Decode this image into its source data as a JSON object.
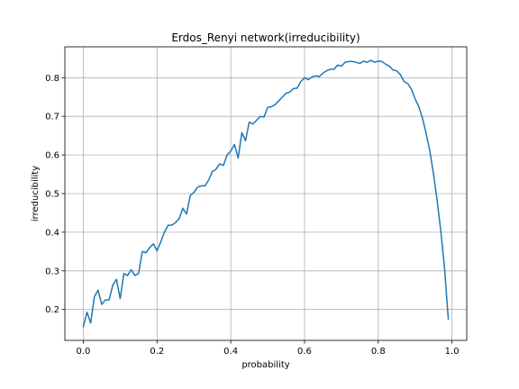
{
  "chart_data": {
    "type": "line",
    "title": "Erdos_Renyi network(irreducibility)",
    "xlabel": "probability",
    "ylabel": "irreducibility",
    "xlim": [
      -0.05,
      1.04
    ],
    "ylim": [
      0.12,
      0.88
    ],
    "xticks": [
      0.0,
      0.2,
      0.4,
      0.6,
      0.8,
      1.0
    ],
    "xtick_labels": [
      "0.0",
      "0.2",
      "0.4",
      "0.6",
      "0.8",
      "1.0"
    ],
    "yticks": [
      0.2,
      0.3,
      0.4,
      0.5,
      0.6,
      0.7,
      0.8
    ],
    "ytick_labels": [
      "0.2",
      "0.3",
      "0.4",
      "0.5",
      "0.6",
      "0.7",
      "0.8"
    ],
    "grid": true,
    "line_color": "#1f77b4",
    "series": [
      {
        "x": [
          0.0,
          0.01,
          0.02,
          0.03,
          0.04,
          0.05,
          0.06,
          0.07,
          0.08,
          0.09,
          0.1,
          0.11,
          0.12,
          0.13,
          0.14,
          0.15,
          0.16,
          0.17,
          0.18,
          0.19,
          0.2,
          0.21,
          0.22,
          0.23,
          0.24,
          0.25,
          0.26,
          0.27,
          0.28,
          0.29,
          0.3,
          0.31,
          0.32,
          0.33,
          0.34,
          0.35,
          0.36,
          0.37,
          0.38,
          0.39,
          0.4,
          0.41,
          0.42,
          0.43,
          0.44,
          0.45,
          0.46,
          0.47,
          0.48,
          0.49,
          0.5,
          0.51,
          0.52,
          0.53,
          0.54,
          0.55,
          0.56,
          0.57,
          0.58,
          0.59,
          0.6,
          0.61,
          0.62,
          0.63,
          0.64,
          0.65,
          0.66,
          0.67,
          0.68,
          0.69,
          0.7,
          0.71,
          0.72,
          0.73,
          0.74,
          0.75,
          0.76,
          0.77,
          0.78,
          0.79,
          0.8,
          0.81,
          0.82,
          0.83,
          0.84,
          0.85,
          0.86,
          0.87,
          0.88,
          0.89,
          0.9,
          0.91,
          0.92,
          0.93,
          0.94,
          0.95,
          0.96,
          0.97,
          0.98,
          0.99
        ],
        "y": [
          0.155,
          0.193,
          0.165,
          0.233,
          0.25,
          0.213,
          0.225,
          0.225,
          0.263,
          0.278,
          0.228,
          0.293,
          0.288,
          0.303,
          0.288,
          0.293,
          0.35,
          0.347,
          0.36,
          0.37,
          0.352,
          0.375,
          0.4,
          0.418,
          0.418,
          0.425,
          0.435,
          0.462,
          0.447,
          0.495,
          0.503,
          0.517,
          0.52,
          0.52,
          0.535,
          0.557,
          0.563,
          0.577,
          0.573,
          0.6,
          0.61,
          0.627,
          0.592,
          0.658,
          0.637,
          0.685,
          0.68,
          0.69,
          0.7,
          0.698,
          0.723,
          0.725,
          0.73,
          0.74,
          0.75,
          0.76,
          0.763,
          0.772,
          0.773,
          0.79,
          0.8,
          0.795,
          0.802,
          0.805,
          0.803,
          0.812,
          0.818,
          0.822,
          0.822,
          0.833,
          0.83,
          0.84,
          0.842,
          0.842,
          0.84,
          0.837,
          0.843,
          0.84,
          0.845,
          0.84,
          0.843,
          0.842,
          0.835,
          0.83,
          0.82,
          0.818,
          0.808,
          0.79,
          0.785,
          0.77,
          0.745,
          0.725,
          0.695,
          0.655,
          0.61,
          0.55,
          0.48,
          0.4,
          0.305,
          0.175
        ]
      }
    ]
  }
}
